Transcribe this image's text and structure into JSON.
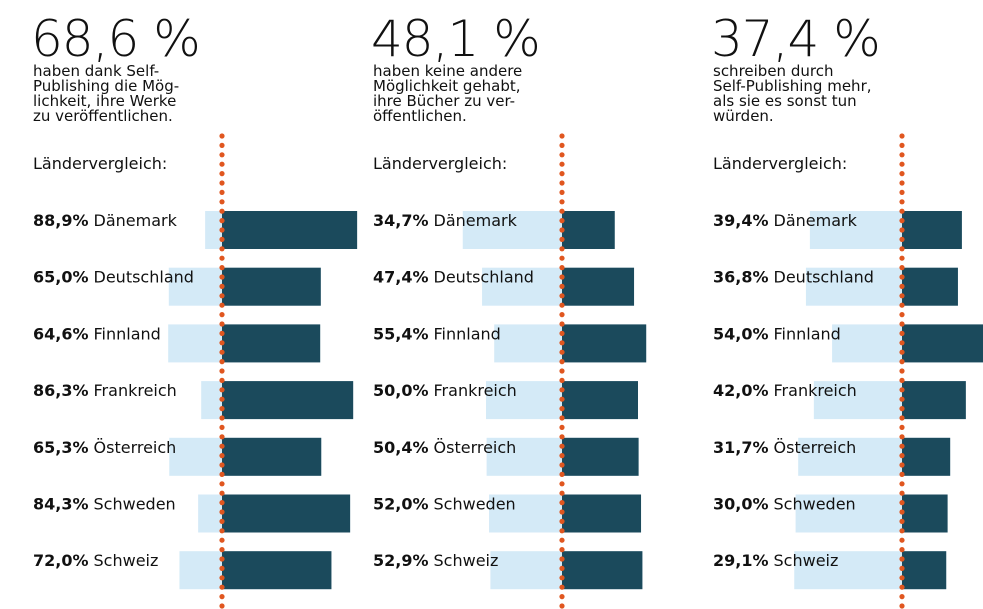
{
  "chart_data": [
    {
      "type": "bar",
      "title": "68,6 %",
      "subtitle": [
        "haben dank Self-",
        "Publishing die Mög-",
        "lichkeit, ihre Werke",
        "zu veröffentlichen."
      ],
      "label": "Ländervergleich:",
      "categories": [
        "Dänemark",
        "Deutschland",
        "Finnland",
        "Frankreich",
        "Österreich",
        "Schweden",
        "Schweiz"
      ],
      "values": [
        88.9,
        65.0,
        64.6,
        86.3,
        65.3,
        84.3,
        72.0
      ],
      "value_labels": [
        "88,9%",
        "65,0%",
        "64,6%",
        "86,3%",
        "65,3%",
        "84,3%",
        "72,0%"
      ],
      "xlim": [
        0,
        100
      ],
      "color": "#1b4a5c",
      "background_color": "#d4eaf7"
    },
    {
      "type": "bar",
      "title": "48,1 %",
      "subtitle": [
        "haben keine andere",
        "Möglichkeit gehabt,",
        "ihre Bücher zu ver-",
        "öffentlichen."
      ],
      "label": "Ländervergleich:",
      "categories": [
        "Dänemark",
        "Deutschland",
        "Finnland",
        "Frankreich",
        "Österreich",
        "Schweden",
        "Schweiz"
      ],
      "values": [
        34.7,
        47.4,
        55.4,
        50.0,
        50.4,
        52.0,
        52.9
      ],
      "value_labels": [
        "34,7%",
        "47,4%",
        "55,4%",
        "50,0%",
        "50,4%",
        "52,0%",
        "52,9%"
      ],
      "xlim": [
        0,
        100
      ],
      "color": "#1b4a5c",
      "background_color": "#d4eaf7"
    },
    {
      "type": "bar",
      "title": "37,4 %",
      "subtitle": [
        "schreiben durch",
        "Self-Publishing mehr,",
        "als sie es sonst tun",
        "würden."
      ],
      "label": "Ländervergleich:",
      "categories": [
        "Dänemark",
        "Deutschland",
        "Finnland",
        "Frankreich",
        "Österreich",
        "Schweden",
        "Schweiz"
      ],
      "values": [
        39.4,
        36.8,
        54.0,
        42.0,
        31.7,
        30.0,
        29.1
      ],
      "value_labels": [
        "39,4%",
        "36,8%",
        "54,0%",
        "42,0%",
        "31,7%",
        "30,0%",
        "29,1%"
      ],
      "xlim": [
        0,
        100
      ],
      "color": "#1b4a5c",
      "background_color": "#d4eaf7"
    }
  ]
}
